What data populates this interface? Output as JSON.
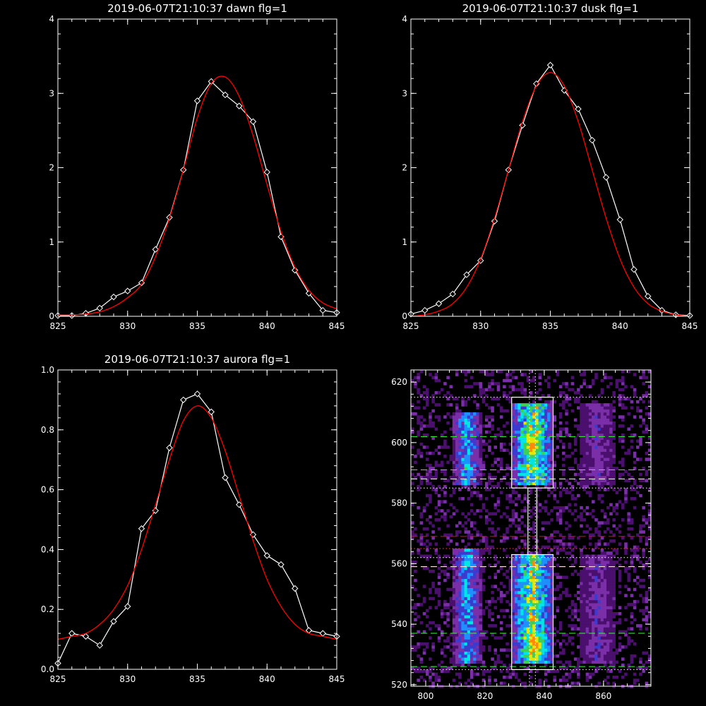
{
  "chart_data": [
    {
      "type": "line",
      "title": "2019-06-07T21:10:37 dawn flg=1",
      "xlim": [
        825,
        845
      ],
      "ylim": [
        0,
        4
      ],
      "xticks": [
        825,
        830,
        835,
        840,
        845
      ],
      "yticks": [
        0,
        1,
        2,
        3,
        4
      ],
      "series": [
        {
          "color": "#ffffff",
          "marker": "diamond",
          "x": [
            825,
            826,
            827,
            828,
            829,
            830,
            831,
            832,
            833,
            834,
            835,
            836,
            837,
            838,
            839,
            840,
            841,
            842,
            843,
            844,
            845
          ],
          "y": [
            0.01,
            0.01,
            0.04,
            0.11,
            0.26,
            0.34,
            0.45,
            0.9,
            1.33,
            1.97,
            2.9,
            3.16,
            2.98,
            2.83,
            2.62,
            1.94,
            1.07,
            0.62,
            0.31,
            0.08,
            0.05
          ]
        },
        {
          "color": "#ff0000",
          "marker": "none",
          "fit": "gaussian",
          "x": [
            825,
            826,
            827,
            828,
            829,
            830,
            831,
            832,
            833,
            834,
            835,
            836,
            837,
            838,
            839,
            840,
            841,
            842,
            843,
            844,
            845
          ],
          "y": [
            0.02,
            0.02,
            0.03,
            0.06,
            0.13,
            0.25,
            0.43,
            0.8,
            1.32,
            1.97,
            2.67,
            3.13,
            3.22,
            2.96,
            2.43,
            1.77,
            1.14,
            0.66,
            0.35,
            0.18,
            0.1
          ]
        }
      ]
    },
    {
      "type": "line",
      "title": "2019-06-07T21:10:37 dusk flg=1",
      "xlim": [
        825,
        845
      ],
      "ylim": [
        0,
        4
      ],
      "xticks": [
        825,
        830,
        835,
        840,
        845
      ],
      "yticks": [
        0,
        1,
        2,
        3,
        4
      ],
      "series": [
        {
          "color": "#ffffff",
          "marker": "diamond",
          "x": [
            825,
            826,
            827,
            828,
            829,
            830,
            831,
            832,
            833,
            834,
            835,
            836,
            837,
            838,
            839,
            840,
            841,
            842,
            843,
            844,
            845
          ],
          "y": [
            0.03,
            0.08,
            0.17,
            0.3,
            0.56,
            0.75,
            1.28,
            1.97,
            2.57,
            3.13,
            3.38,
            3.04,
            2.79,
            2.37,
            1.87,
            1.3,
            0.63,
            0.27,
            0.08,
            0.02,
            0.01
          ]
        },
        {
          "color": "#ff0000",
          "marker": "none",
          "fit": "gaussian",
          "x": [
            825,
            826,
            827,
            828,
            829,
            830,
            831,
            832,
            833,
            834,
            835,
            836,
            837,
            838,
            839,
            840,
            841,
            842,
            843,
            844,
            845
          ],
          "y": [
            0.0,
            0.02,
            0.07,
            0.17,
            0.39,
            0.77,
            1.32,
            1.97,
            2.62,
            3.1,
            3.28,
            3.1,
            2.62,
            1.97,
            1.32,
            0.77,
            0.39,
            0.17,
            0.07,
            0.02,
            0.0
          ]
        }
      ]
    },
    {
      "type": "line",
      "title": "2019-06-07T21:10:37 aurora flg=1",
      "xlim": [
        825,
        845
      ],
      "ylim": [
        0,
        1
      ],
      "xticks": [
        825,
        830,
        835,
        840,
        845
      ],
      "yticks": [
        0.0,
        0.2,
        0.4,
        0.6,
        0.8,
        1.0
      ],
      "ytick_labels": [
        "0.0",
        "0.2",
        "0.4",
        "0.6",
        "0.8",
        "1.0"
      ],
      "series": [
        {
          "color": "#ffffff",
          "marker": "diamond",
          "x": [
            825,
            826,
            827,
            828,
            829,
            830,
            831,
            832,
            833,
            834,
            835,
            836,
            837,
            838,
            839,
            840,
            841,
            842,
            843,
            844,
            845
          ],
          "y": [
            0.02,
            0.12,
            0.11,
            0.08,
            0.16,
            0.21,
            0.47,
            0.53,
            0.74,
            0.9,
            0.92,
            0.86,
            0.64,
            0.55,
            0.45,
            0.38,
            0.35,
            0.27,
            0.13,
            0.12,
            0.11
          ]
        },
        {
          "color": "#ff0000",
          "marker": "none",
          "fit": "gaussian",
          "x": [
            825,
            826,
            827,
            828,
            829,
            830,
            831,
            832,
            833,
            834,
            835,
            836,
            837,
            838,
            839,
            840,
            841,
            842,
            843,
            844,
            845
          ],
          "y": [
            0.1,
            0.11,
            0.12,
            0.15,
            0.2,
            0.28,
            0.4,
            0.55,
            0.7,
            0.83,
            0.88,
            0.84,
            0.73,
            0.58,
            0.43,
            0.3,
            0.21,
            0.15,
            0.12,
            0.11,
            0.1
          ]
        }
      ]
    },
    {
      "type": "heatmap",
      "title": "",
      "xlim": [
        795,
        876
      ],
      "ylim": [
        519.5,
        624
      ],
      "xticks": [
        800,
        820,
        840,
        860
      ],
      "yticks": [
        520,
        540,
        560,
        580,
        600,
        620
      ],
      "colormap": [
        "#000000",
        "#4b0f6e",
        "#7a2fa8",
        "#3b3bd0",
        "#1e90ff",
        "#00e5e5",
        "#3ccf5a",
        "#e6e600",
        "#ff8c00",
        "#ff0000"
      ],
      "emission_columns": [
        {
          "x_center": 814,
          "x_width": 8,
          "y_ranges": [
            [
              586,
              609
            ],
            [
              527,
              564
            ]
          ],
          "peak_level": 6
        },
        {
          "x_center": 836,
          "x_width": 12,
          "y_ranges": [
            [
              586,
              612
            ],
            [
              527,
              562
            ]
          ],
          "peak_level": 9,
          "hotspots": [
            [
              836,
              599
            ],
            [
              837,
              533
            ]
          ]
        },
        {
          "x_center": 858,
          "x_width": 10,
          "y_ranges": [
            [
              586,
              612
            ],
            [
              527,
              562
            ]
          ],
          "peak_level": 3
        }
      ],
      "boxes": [
        {
          "x": [
            829,
            843
          ],
          "y": [
            585,
            615
          ],
          "color": "#ffffff"
        },
        {
          "x": [
            829,
            843
          ],
          "y": [
            525,
            563
          ],
          "color": "#ffffff"
        },
        {
          "x": [
            834.5,
            837.5
          ],
          "y": [
            563,
            585
          ],
          "color": "#ffffff"
        }
      ],
      "hlines": [
        {
          "y": 615,
          "style": "dotted",
          "color": "#ffffff"
        },
        {
          "y": 602,
          "style": "dashed",
          "color": "#33ff33"
        },
        {
          "y": 591,
          "style": "dashed",
          "color": "#33ff33"
        },
        {
          "y": 588,
          "style": "dashed",
          "color": "#ffffff"
        },
        {
          "y": 585,
          "style": "dotted",
          "color": "#ffffff"
        },
        {
          "y": 569,
          "style": "dashed",
          "color": "#ff0000"
        },
        {
          "y": 565,
          "style": "dotted",
          "color": "#ff4444"
        },
        {
          "y": 562,
          "style": "dotted",
          "color": "#ffffff"
        },
        {
          "y": 559,
          "style": "dashed",
          "color": "#ff0000"
        },
        {
          "y": 559,
          "style": "dashed",
          "color": "#ffffff"
        },
        {
          "y": 537,
          "style": "dashed",
          "color": "#33ff33"
        },
        {
          "y": 526,
          "style": "dashed",
          "color": "#33ff33"
        },
        {
          "y": 525,
          "style": "dotted",
          "color": "#ffffff"
        }
      ],
      "vlines": [
        {
          "x": 835,
          "style": "dotted",
          "color": "#ffffff"
        },
        {
          "x": 837,
          "style": "dotted",
          "color": "#ffffff"
        }
      ]
    }
  ]
}
